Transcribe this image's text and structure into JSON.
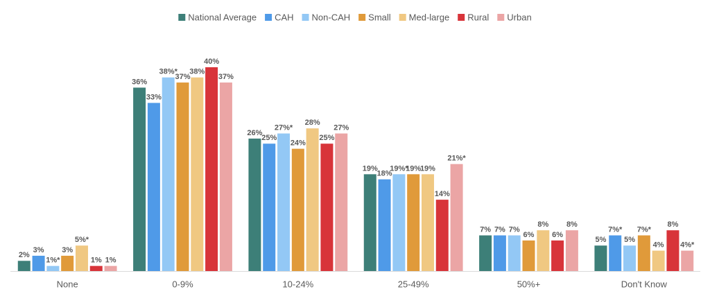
{
  "chart_data": {
    "type": "bar",
    "categories": [
      "None",
      "0-9%",
      "10-24%",
      "25-49%",
      "50%+",
      "Don't Know"
    ],
    "series": [
      {
        "name": "National Average",
        "color": "#3d7f78",
        "values": [
          2,
          36,
          26,
          19,
          7,
          5
        ],
        "value_labels": [
          "2%",
          "36%",
          "26%",
          "19%",
          "7%",
          "5%"
        ]
      },
      {
        "name": "CAH",
        "color": "#4f9ae8",
        "values": [
          3,
          33,
          25,
          18,
          7,
          7
        ],
        "value_labels": [
          "3%",
          "33%",
          "25%",
          "18%",
          "7%",
          "7%*"
        ]
      },
      {
        "name": "Non-CAH",
        "color": "#93c8f5",
        "values": [
          1,
          38,
          27,
          19,
          7,
          5
        ],
        "value_labels": [
          "1%*",
          "38%*",
          "27%*",
          "19%*",
          "7%",
          "5%"
        ]
      },
      {
        "name": "Small",
        "color": "#e09a3a",
        "values": [
          3,
          37,
          24,
          19,
          6,
          7
        ],
        "value_labels": [
          "3%",
          "37%",
          "24%",
          "19%",
          "6%",
          "7%*"
        ]
      },
      {
        "name": "Med-large",
        "color": "#f0c882",
        "values": [
          5,
          38,
          28,
          19,
          8,
          4
        ],
        "value_labels": [
          "5%*",
          "38%",
          "28%",
          "19%",
          "8%",
          "4%"
        ]
      },
      {
        "name": "Rural",
        "color": "#d8343a",
        "values": [
          1,
          40,
          25,
          14,
          6,
          8
        ],
        "value_labels": [
          "1%",
          "40%",
          "25%",
          "14%",
          "6%",
          "8%"
        ]
      },
      {
        "name": "Urban",
        "color": "#eba5a5",
        "values": [
          1,
          37,
          27,
          21,
          8,
          4
        ],
        "value_labels": [
          "1%",
          "37%",
          "27%",
          "21%*",
          "8%",
          "4%*"
        ]
      }
    ],
    "legend": "top"
  }
}
